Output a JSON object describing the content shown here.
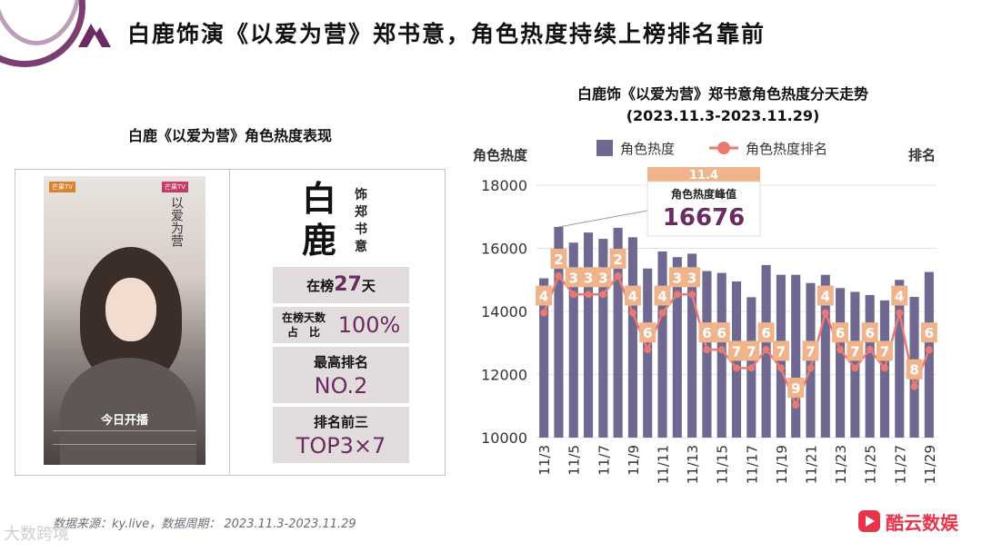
{
  "title": "白鹿饰演《以爱为营》郑书意，角色热度持续上榜排名靠前",
  "left": {
    "section_title": "白鹿《以爱为营》角色热度表现",
    "poster": {
      "title": "以爱为营",
      "caption": "今日开播",
      "logo_left": "芒果TV",
      "logo_right": "芒果TV"
    },
    "actor_name_1": "白",
    "actor_name_2": "鹿",
    "role_lines": [
      "饰",
      "郑",
      "书",
      "意"
    ],
    "stats": {
      "days_label_pre": "在榜",
      "days_value": "27",
      "days_label_post": "天",
      "ratio_label_1": "在榜天数",
      "ratio_label_2": "占　比",
      "ratio_value": "100%",
      "best_label": "最高排名",
      "best_value": "NO.2",
      "top3_label": "排名前三",
      "top3_value": "TOP3×7"
    }
  },
  "chart": {
    "title_line1": "白鹿饰《以爱为营》郑书意角色热度分天走势",
    "title_line2": "(2023.11.3-2023.11.29)"
  },
  "chart_data": {
    "type": "bar+line",
    "title": "白鹿饰《以爱为营》郑书意角色热度分天走势",
    "subtitle": "(2023.11.3-2023.11.29)",
    "ylabel": "角色热度",
    "y2label": "排名",
    "ylim": [
      10000,
      18000
    ],
    "yticks": [
      "10000",
      "12000",
      "14000",
      "16000",
      "18000"
    ],
    "y2lim": [
      12,
      1
    ],
    "categories": [
      "11/3",
      "11/4",
      "11/5",
      "11/6",
      "11/7",
      "11/8",
      "11/9",
      "11/10",
      "11/11",
      "11/12",
      "11/13",
      "11/14",
      "11/15",
      "11/16",
      "11/17",
      "11/18",
      "11/19",
      "11/20",
      "11/21",
      "11/22",
      "11/23",
      "11/24",
      "11/25",
      "11/26",
      "11/27",
      "11/28",
      "11/29"
    ],
    "xtick_labels": [
      "11/3",
      "",
      "11/5",
      "",
      "11/7",
      "",
      "11/9",
      "",
      "11/11",
      "",
      "11/13",
      "",
      "11/15",
      "",
      "11/17",
      "",
      "11/19",
      "",
      "11/21",
      "",
      "11/23",
      "",
      "11/25",
      "",
      "11/27",
      "",
      "11/29"
    ],
    "series": [
      {
        "name": "角色热度",
        "type": "bar",
        "color": "#6f6890",
        "values": [
          15050,
          16676,
          16180,
          16500,
          16300,
          16650,
          16350,
          15360,
          15900,
          15720,
          15830,
          15280,
          15220,
          14950,
          14450,
          15470,
          15160,
          15160,
          14900,
          15160,
          14740,
          14620,
          14520,
          14350,
          15000,
          14460,
          15250
        ]
      },
      {
        "name": "角色热度排名",
        "type": "line",
        "color": "#e87a72",
        "values": [
          4,
          2,
          3,
          3,
          3,
          2,
          4,
          6,
          4,
          3,
          3,
          6,
          6,
          7,
          7,
          6,
          7,
          9,
          7,
          4,
          6,
          7,
          6,
          7,
          4,
          8,
          6
        ]
      }
    ],
    "peak_annotation": {
      "date": "11.4",
      "label": "角色热度峰值",
      "value": "16676"
    }
  },
  "footer": {
    "source": "数据来源：ky.live，数据周期： 2023.11.3-2023.11.29",
    "watermark": "大数跨境",
    "brand": "酷云数娱"
  },
  "colors": {
    "accent": "#6b2a62",
    "bar": "#6f6890",
    "line": "#e87a72",
    "rank_box": "#efb48c",
    "brand": "#e8344b"
  }
}
